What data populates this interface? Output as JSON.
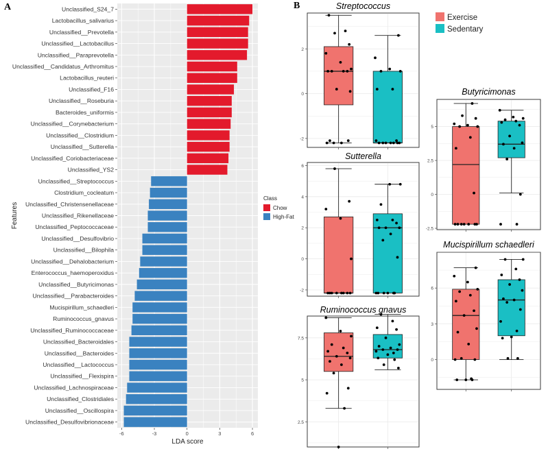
{
  "panels": {
    "a": "A",
    "b": "B"
  },
  "chart_data": [
    {
      "type": "bar",
      "orientation": "horizontal",
      "xlabel": "LDA score",
      "ylabel": "Features",
      "xlim": [
        -6.4,
        6.5
      ],
      "xticks": [
        -6,
        -3,
        0,
        3,
        6
      ],
      "legend": {
        "title": "Class",
        "placement": "right",
        "entries": [
          {
            "name": "Chow",
            "color": "#e31a2c"
          },
          {
            "name": "High-Fat",
            "color": "#3a82c0"
          }
        ]
      },
      "bars": [
        {
          "feature": "Unclassified_S24_7",
          "value": 6.0,
          "class": "Chow"
        },
        {
          "feature": "Lactobacillus_salivarius",
          "value": 5.7,
          "class": "Chow"
        },
        {
          "feature": "Unclassified__Prevotella",
          "value": 5.6,
          "class": "Chow"
        },
        {
          "feature": "Unclassified__Lactobacillus",
          "value": 5.6,
          "class": "Chow"
        },
        {
          "feature": "Unclassified__Paraprevotella",
          "value": 5.5,
          "class": "Chow"
        },
        {
          "feature": "Unclassified__Candidatus_Arthromitus",
          "value": 4.6,
          "class": "Chow"
        },
        {
          "feature": "Lactobacillus_reuteri",
          "value": 4.6,
          "class": "Chow"
        },
        {
          "feature": "Unclassified_F16",
          "value": 4.3,
          "class": "Chow"
        },
        {
          "feature": "Unclassified__Roseburia",
          "value": 4.1,
          "class": "Chow"
        },
        {
          "feature": "Bacteroides_uniformis",
          "value": 4.1,
          "class": "Chow"
        },
        {
          "feature": "Unclassified__Corynebacterium",
          "value": 4.0,
          "class": "Chow"
        },
        {
          "feature": "Unclassified__Clostridium",
          "value": 3.9,
          "class": "Chow"
        },
        {
          "feature": "Unclassified__Sutterella",
          "value": 3.9,
          "class": "Chow"
        },
        {
          "feature": "Unclassified_Coriobacteriaceae",
          "value": 3.8,
          "class": "Chow"
        },
        {
          "feature": "Unclassified_YS2",
          "value": 3.7,
          "class": "Chow"
        },
        {
          "feature": "Unclassified__Streptococcus",
          "value": -3.3,
          "class": "High-Fat"
        },
        {
          "feature": "Clostridium_cocleatum",
          "value": -3.4,
          "class": "High-Fat"
        },
        {
          "feature": "Unclassified_Christensenellaceae",
          "value": -3.5,
          "class": "High-Fat"
        },
        {
          "feature": "Unclassified_Rikenellaceae",
          "value": -3.6,
          "class": "High-Fat"
        },
        {
          "feature": "Unclassified_Peptococcaceae",
          "value": -3.6,
          "class": "High-Fat"
        },
        {
          "feature": "Unclassified__Desulfovibrio",
          "value": -4.1,
          "class": "High-Fat"
        },
        {
          "feature": "Unclassified__Bilophila",
          "value": -4.1,
          "class": "High-Fat"
        },
        {
          "feature": "Unclassified__Dehalobacterium",
          "value": -4.3,
          "class": "High-Fat"
        },
        {
          "feature": "Enterococcus_haemoperoxidus",
          "value": -4.4,
          "class": "High-Fat"
        },
        {
          "feature": "Unclassified__Butyricimonas",
          "value": -4.6,
          "class": "High-Fat"
        },
        {
          "feature": "Unclassified__Parabacteroides",
          "value": -4.8,
          "class": "High-Fat"
        },
        {
          "feature": "Mucispirillum_schaedleri",
          "value": -5.0,
          "class": "High-Fat"
        },
        {
          "feature": "Ruminococcus_gnavus",
          "value": -5.0,
          "class": "High-Fat"
        },
        {
          "feature": "Unclassified_Ruminococcaceae",
          "value": -5.1,
          "class": "High-Fat"
        },
        {
          "feature": "Unclassified_Bacteroidales",
          "value": -5.3,
          "class": "High-Fat"
        },
        {
          "feature": "Unclassified__Bacteroides",
          "value": -5.3,
          "class": "High-Fat"
        },
        {
          "feature": "Unclassified__Lactococcus",
          "value": -5.3,
          "class": "High-Fat"
        },
        {
          "feature": "Unclassified__Flexispira",
          "value": -5.3,
          "class": "High-Fat"
        },
        {
          "feature": "Unclassified_Lachnospiraceae",
          "value": -5.5,
          "class": "High-Fat"
        },
        {
          "feature": "Unclassified_Clostridiales",
          "value": -5.6,
          "class": "High-Fat"
        },
        {
          "feature": "Unclassified__Oscillospira",
          "value": -5.8,
          "class": "High-Fat"
        },
        {
          "feature": "Unclassified_Desulfovibrionaceae",
          "value": -5.8,
          "class": "High-Fat"
        }
      ]
    },
    {
      "type": "box",
      "legend": {
        "placement": "top-right",
        "entries": [
          {
            "name": "Exercise",
            "color": "#f0736e"
          },
          {
            "name": "Sedentary",
            "color": "#1abfc4"
          }
        ]
      },
      "panels": [
        {
          "title": "Streptococcus",
          "ylim": [
            -2.4,
            3.6
          ],
          "yticks": [
            -2,
            0,
            2
          ],
          "groups": [
            {
              "name": "Exercise",
              "min": -2.2,
              "q1": -0.5,
              "median": 1.0,
              "q3": 2.1,
              "max": 3.5,
              "points": [
                3.5,
                2.8,
                2.7,
                2.2,
                1.8,
                1.4,
                1.1,
                1.0,
                1.0,
                1.0,
                1.0,
                0.2,
                0.1,
                -2.1,
                -2.2,
                -2.2,
                -2.1,
                -2.2
              ]
            },
            {
              "name": "Sedentary",
              "min": -2.2,
              "q1": -2.2,
              "median": -2.2,
              "q3": 1.0,
              "max": 2.6,
              "points": [
                2.6,
                1.6,
                1.1,
                1.0,
                1.0,
                0.2,
                0.2,
                -2.1,
                -2.2,
                -2.2,
                -2.2,
                -2.2,
                -2.2,
                -2.2,
                -2.1,
                -2.2
              ]
            }
          ]
        },
        {
          "title": "Butyricimonas",
          "ylim": [
            -2.6,
            7.0
          ],
          "yticks": [
            -2.5,
            0.0,
            2.5,
            5.0
          ],
          "groups": [
            {
              "name": "Exercise",
              "min": -2.2,
              "q1": -2.2,
              "median": 2.2,
              "q3": 5.0,
              "max": 6.7,
              "points": [
                6.7,
                5.8,
                5.6,
                5.2,
                5.1,
                5.0,
                5.0,
                4.2,
                3.4,
                0.1,
                -2.2,
                -2.2,
                -2.2,
                -2.2,
                -2.2,
                -2.2,
                -2.2
              ]
            },
            {
              "name": "Sedentary",
              "min": 0.1,
              "q1": 2.7,
              "median": 3.7,
              "q3": 5.4,
              "max": 6.2,
              "points": [
                6.2,
                5.7,
                5.6,
                5.5,
                5.4,
                5.3,
                5.1,
                4.3,
                3.8,
                3.7,
                3.4,
                2.6,
                0.0,
                -2.2,
                -2.2
              ]
            }
          ]
        },
        {
          "title": "Sutterella",
          "ylim": [
            -2.4,
            6.2
          ],
          "yticks": [
            -2,
            0,
            2,
            4,
            6
          ],
          "groups": [
            {
              "name": "Exercise",
              "min": -2.2,
              "q1": -2.2,
              "median": -2.2,
              "q3": 2.7,
              "max": 5.8,
              "points": [
                5.8,
                3.7,
                3.2,
                2.6,
                0.0,
                -2.2,
                -2.2,
                -2.2,
                -2.2,
                -2.2,
                -2.2,
                -2.2,
                -2.2
              ]
            },
            {
              "name": "Sedentary",
              "min": -2.2,
              "q1": -2.2,
              "median": 2.0,
              "q3": 2.9,
              "max": 4.8,
              "points": [
                4.8,
                4.8,
                3.5,
                2.5,
                2.5,
                2.3,
                2.0,
                2.0,
                2.0,
                1.6,
                1.2,
                0.1,
                -2.2,
                -2.2,
                -2.2,
                -2.2,
                -2.2,
                -2.2
              ]
            }
          ]
        },
        {
          "title": "Mucispirillum schaedleri",
          "ylim": [
            -2.5,
            9.0
          ],
          "yticks": [
            0,
            3,
            6
          ],
          "groups": [
            {
              "name": "Exercise",
              "min": -1.7,
              "q1": 0.0,
              "median": 3.7,
              "q3": 5.9,
              "max": 7.7,
              "points": [
                7.7,
                7.0,
                6.5,
                5.9,
                5.7,
                5.4,
                4.9,
                4.1,
                3.7,
                2.6,
                2.3,
                1.3,
                0.1,
                0.0,
                0.0,
                -1.6,
                -1.7,
                -1.7,
                -1.7
              ]
            },
            {
              "name": "Sedentary",
              "min": 0.0,
              "q1": 2.0,
              "median": 5.0,
              "q3": 6.7,
              "max": 8.4,
              "points": [
                8.4,
                8.4,
                7.6,
                7.1,
                6.7,
                6.3,
                5.8,
                5.1,
                5.0,
                4.8,
                4.2,
                3.2,
                2.4,
                1.9,
                1.8,
                0.1,
                0.1
              ]
            }
          ]
        },
        {
          "title": "Ruminococcus gnavus",
          "ylim": [
            1.0,
            8.8
          ],
          "yticks": [
            2.5,
            5.0,
            7.5
          ],
          "groups": [
            {
              "name": "Exercise",
              "min": 3.3,
              "q1": 5.5,
              "median": 6.4,
              "q3": 7.8,
              "max": 8.7,
              "points": [
                8.7,
                7.9,
                7.6,
                7.1,
                6.9,
                6.7,
                6.6,
                6.4,
                6.3,
                6.1,
                5.9,
                5.4,
                4.5,
                4.2,
                3.3,
                1.0
              ]
            },
            {
              "name": "Sedentary",
              "min": 5.6,
              "q1": 6.3,
              "median": 6.8,
              "q3": 7.7,
              "max": 8.9,
              "points": [
                8.9,
                8.5,
                8.1,
                8.0,
                7.5,
                7.1,
                7.0,
                6.9,
                6.8,
                6.8,
                6.7,
                6.6,
                6.5,
                6.3,
                6.2,
                5.9,
                5.7
              ]
            }
          ]
        }
      ]
    }
  ]
}
